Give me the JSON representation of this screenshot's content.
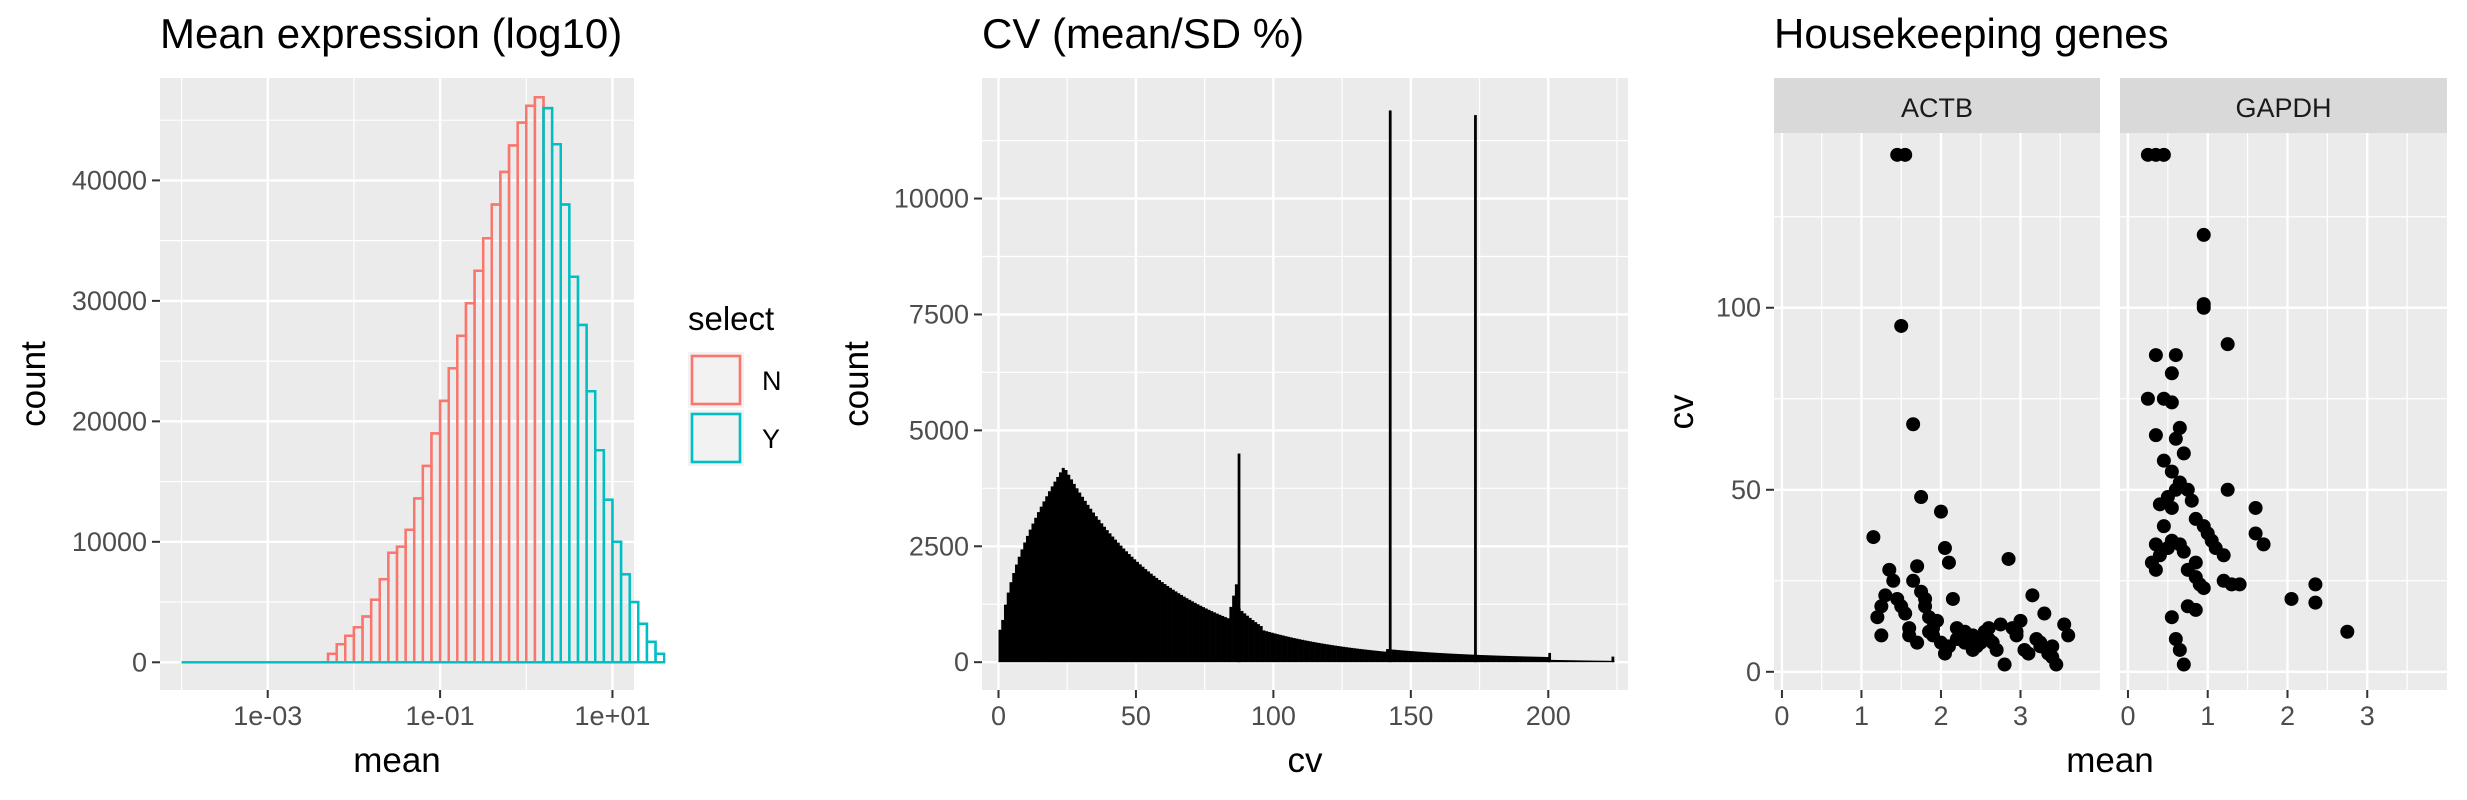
{
  "colors": {
    "N": "#F8766D",
    "Y": "#00BFC4",
    "panel_bg": "#EBEBEB",
    "grid": "#FFFFFF",
    "strip_bg": "#D9D9D9",
    "ink": "#000000"
  },
  "chart_data": [
    {
      "type": "bar",
      "title": "Mean expression (log10)",
      "xlabel": "mean",
      "ylabel": "count",
      "x_scale": "log10",
      "x_ticks": [
        "1e-03",
        "1e-01",
        "1e+01"
      ],
      "y_ticks": [
        "0",
        "10000",
        "20000",
        "30000",
        "40000"
      ],
      "xlim_log10": [
        -4.25,
        1.25
      ],
      "ylim": [
        -2300,
        48500
      ],
      "legend": {
        "title": "select",
        "entries": [
          "N",
          "Y"
        ],
        "position": "right"
      },
      "bin_log10_start": -4.0,
      "bin_log10_width": 0.1,
      "series": [
        {
          "name": "N",
          "values": [
            0,
            0,
            0,
            0,
            0,
            0,
            0,
            0,
            0,
            0,
            0,
            0,
            0,
            0,
            0,
            0,
            0,
            700,
            1500,
            2200,
            2900,
            3800,
            5200,
            6900,
            9100,
            9600,
            11000,
            13600,
            16300,
            19000,
            21700,
            24400,
            27100,
            29800,
            32500,
            35200,
            38000,
            40700,
            42900,
            44800,
            46200,
            46900,
            0,
            0,
            0,
            0,
            0,
            0,
            0,
            0,
            0,
            0,
            0,
            0,
            0,
            0
          ]
        },
        {
          "name": "Y",
          "values": [
            0,
            0,
            0,
            0,
            0,
            0,
            0,
            0,
            0,
            0,
            0,
            0,
            0,
            0,
            0,
            0,
            0,
            0,
            0,
            0,
            0,
            0,
            0,
            0,
            0,
            0,
            0,
            0,
            0,
            0,
            0,
            0,
            0,
            0,
            0,
            0,
            0,
            0,
            0,
            0,
            0,
            0,
            46000,
            43000,
            38000,
            32000,
            28000,
            22500,
            17600,
            13500,
            10000,
            7300,
            5000,
            3200,
            1700,
            700
          ]
        }
      ]
    },
    {
      "type": "bar",
      "title": "CV (mean/SD %)",
      "xlabel": "cv",
      "ylabel": "count",
      "x_ticks": [
        "0",
        "50",
        "100",
        "150",
        "200"
      ],
      "y_ticks": [
        "0",
        "2500",
        "5000",
        "7500",
        "10000"
      ],
      "xlim": [
        -6,
        229
      ],
      "ylim": [
        -600,
        12600
      ],
      "bin_width": 1,
      "x_start": 0,
      "spikes": [
        {
          "x": 87,
          "value": 4500
        },
        {
          "x": 142,
          "value": 11900
        },
        {
          "x": 173,
          "value": 11800
        },
        {
          "x": 200,
          "value": 200
        },
        {
          "x": 223,
          "value": 120
        }
      ]
    },
    {
      "type": "scatter",
      "title": "Housekeeping genes",
      "xlabel": "mean",
      "ylabel": "cv",
      "x_ticks": [
        "0",
        "1",
        "2",
        "3"
      ],
      "y_ticks": [
        "0",
        "50",
        "100"
      ],
      "xlim": [
        -0.1,
        4.0
      ],
      "ylim": [
        -5,
        148
      ],
      "facets": [
        {
          "label": "ACTB",
          "points": [
            [
              1.45,
              142
            ],
            [
              1.55,
              142
            ],
            [
              1.5,
              95
            ],
            [
              1.65,
              68
            ],
            [
              1.75,
              48
            ],
            [
              1.15,
              37
            ],
            [
              1.25,
              18
            ],
            [
              1.3,
              21
            ],
            [
              1.35,
              28
            ],
            [
              1.4,
              25
            ],
            [
              1.2,
              15
            ],
            [
              1.25,
              10
            ],
            [
              1.45,
              20
            ],
            [
              1.5,
              18
            ],
            [
              1.55,
              16
            ],
            [
              1.6,
              12
            ],
            [
              1.65,
              25
            ],
            [
              1.7,
              29
            ],
            [
              1.75,
              22
            ],
            [
              1.8,
              18
            ],
            [
              1.85,
              15
            ],
            [
              1.9,
              12
            ],
            [
              1.95,
              14
            ],
            [
              2.0,
              8
            ],
            [
              2.0,
              44
            ],
            [
              2.05,
              34
            ],
            [
              2.1,
              30
            ],
            [
              2.15,
              20
            ],
            [
              2.2,
              12
            ],
            [
              2.25,
              10
            ],
            [
              2.3,
              8
            ],
            [
              2.35,
              9
            ],
            [
              2.4,
              6
            ],
            [
              2.45,
              7
            ],
            [
              2.55,
              11
            ],
            [
              2.6,
              9
            ],
            [
              2.7,
              6
            ],
            [
              2.75,
              13
            ],
            [
              2.8,
              2
            ],
            [
              2.85,
              31
            ],
            [
              2.9,
              12
            ],
            [
              2.95,
              10
            ],
            [
              3.0,
              14
            ],
            [
              3.05,
              6
            ],
            [
              3.1,
              5
            ],
            [
              3.15,
              21
            ],
            [
              3.2,
              9
            ],
            [
              3.25,
              7
            ],
            [
              3.3,
              16
            ],
            [
              3.35,
              5
            ],
            [
              3.4,
              4
            ],
            [
              3.45,
              2
            ],
            [
              3.55,
              13
            ],
            [
              3.6,
              10
            ],
            [
              1.6,
              10
            ],
            [
              1.7,
              8
            ],
            [
              1.8,
              20
            ],
            [
              1.85,
              11
            ],
            [
              1.9,
              10
            ],
            [
              2.05,
              5
            ],
            [
              2.1,
              7
            ],
            [
              2.2,
              9
            ],
            [
              2.3,
              11
            ],
            [
              2.4,
              10
            ],
            [
              2.6,
              12
            ],
            [
              2.65,
              8
            ],
            [
              2.95,
              11
            ],
            [
              3.25,
              8
            ],
            [
              3.4,
              7
            ],
            [
              2.5,
              8
            ]
          ]
        },
        {
          "label": "GAPDH",
          "points": [
            [
              0.25,
              142
            ],
            [
              0.35,
              142
            ],
            [
              0.45,
              142
            ],
            [
              0.95,
              120
            ],
            [
              0.95,
              100
            ],
            [
              0.95,
              101
            ],
            [
              0.35,
              87
            ],
            [
              0.55,
              82
            ],
            [
              0.6,
              87
            ],
            [
              0.55,
              74
            ],
            [
              1.25,
              90
            ],
            [
              0.25,
              75
            ],
            [
              0.45,
              75
            ],
            [
              0.65,
              67
            ],
            [
              0.35,
              65
            ],
            [
              0.6,
              64
            ],
            [
              0.7,
              60
            ],
            [
              0.45,
              58
            ],
            [
              0.55,
              55
            ],
            [
              0.65,
              52
            ],
            [
              0.75,
              50
            ],
            [
              0.8,
              47
            ],
            [
              0.55,
              45
            ],
            [
              0.6,
              50
            ],
            [
              0.4,
              46
            ],
            [
              0.85,
              42
            ],
            [
              0.95,
              40
            ],
            [
              1.0,
              38
            ],
            [
              1.05,
              36
            ],
            [
              1.1,
              34
            ],
            [
              1.2,
              32
            ],
            [
              0.35,
              35
            ],
            [
              0.4,
              32
            ],
            [
              0.5,
              34
            ],
            [
              0.55,
              36
            ],
            [
              0.65,
              35
            ],
            [
              0.7,
              33
            ],
            [
              0.75,
              28
            ],
            [
              0.3,
              30
            ],
            [
              0.35,
              28
            ],
            [
              0.85,
              26
            ],
            [
              0.9,
              24
            ],
            [
              0.95,
              23
            ],
            [
              1.2,
              25
            ],
            [
              1.3,
              24
            ],
            [
              1.4,
              24
            ],
            [
              1.25,
              50
            ],
            [
              1.6,
              45
            ],
            [
              1.6,
              38
            ],
            [
              1.7,
              35
            ],
            [
              2.05,
              20
            ],
            [
              2.35,
              24
            ],
            [
              2.35,
              19
            ],
            [
              2.75,
              11
            ],
            [
              0.55,
              15
            ],
            [
              0.6,
              9
            ],
            [
              0.65,
              6
            ],
            [
              0.75,
              18
            ],
            [
              0.85,
              17
            ],
            [
              0.7,
              2
            ],
            [
              0.45,
              40
            ],
            [
              0.5,
              48
            ],
            [
              0.85,
              30
            ]
          ]
        }
      ]
    }
  ]
}
